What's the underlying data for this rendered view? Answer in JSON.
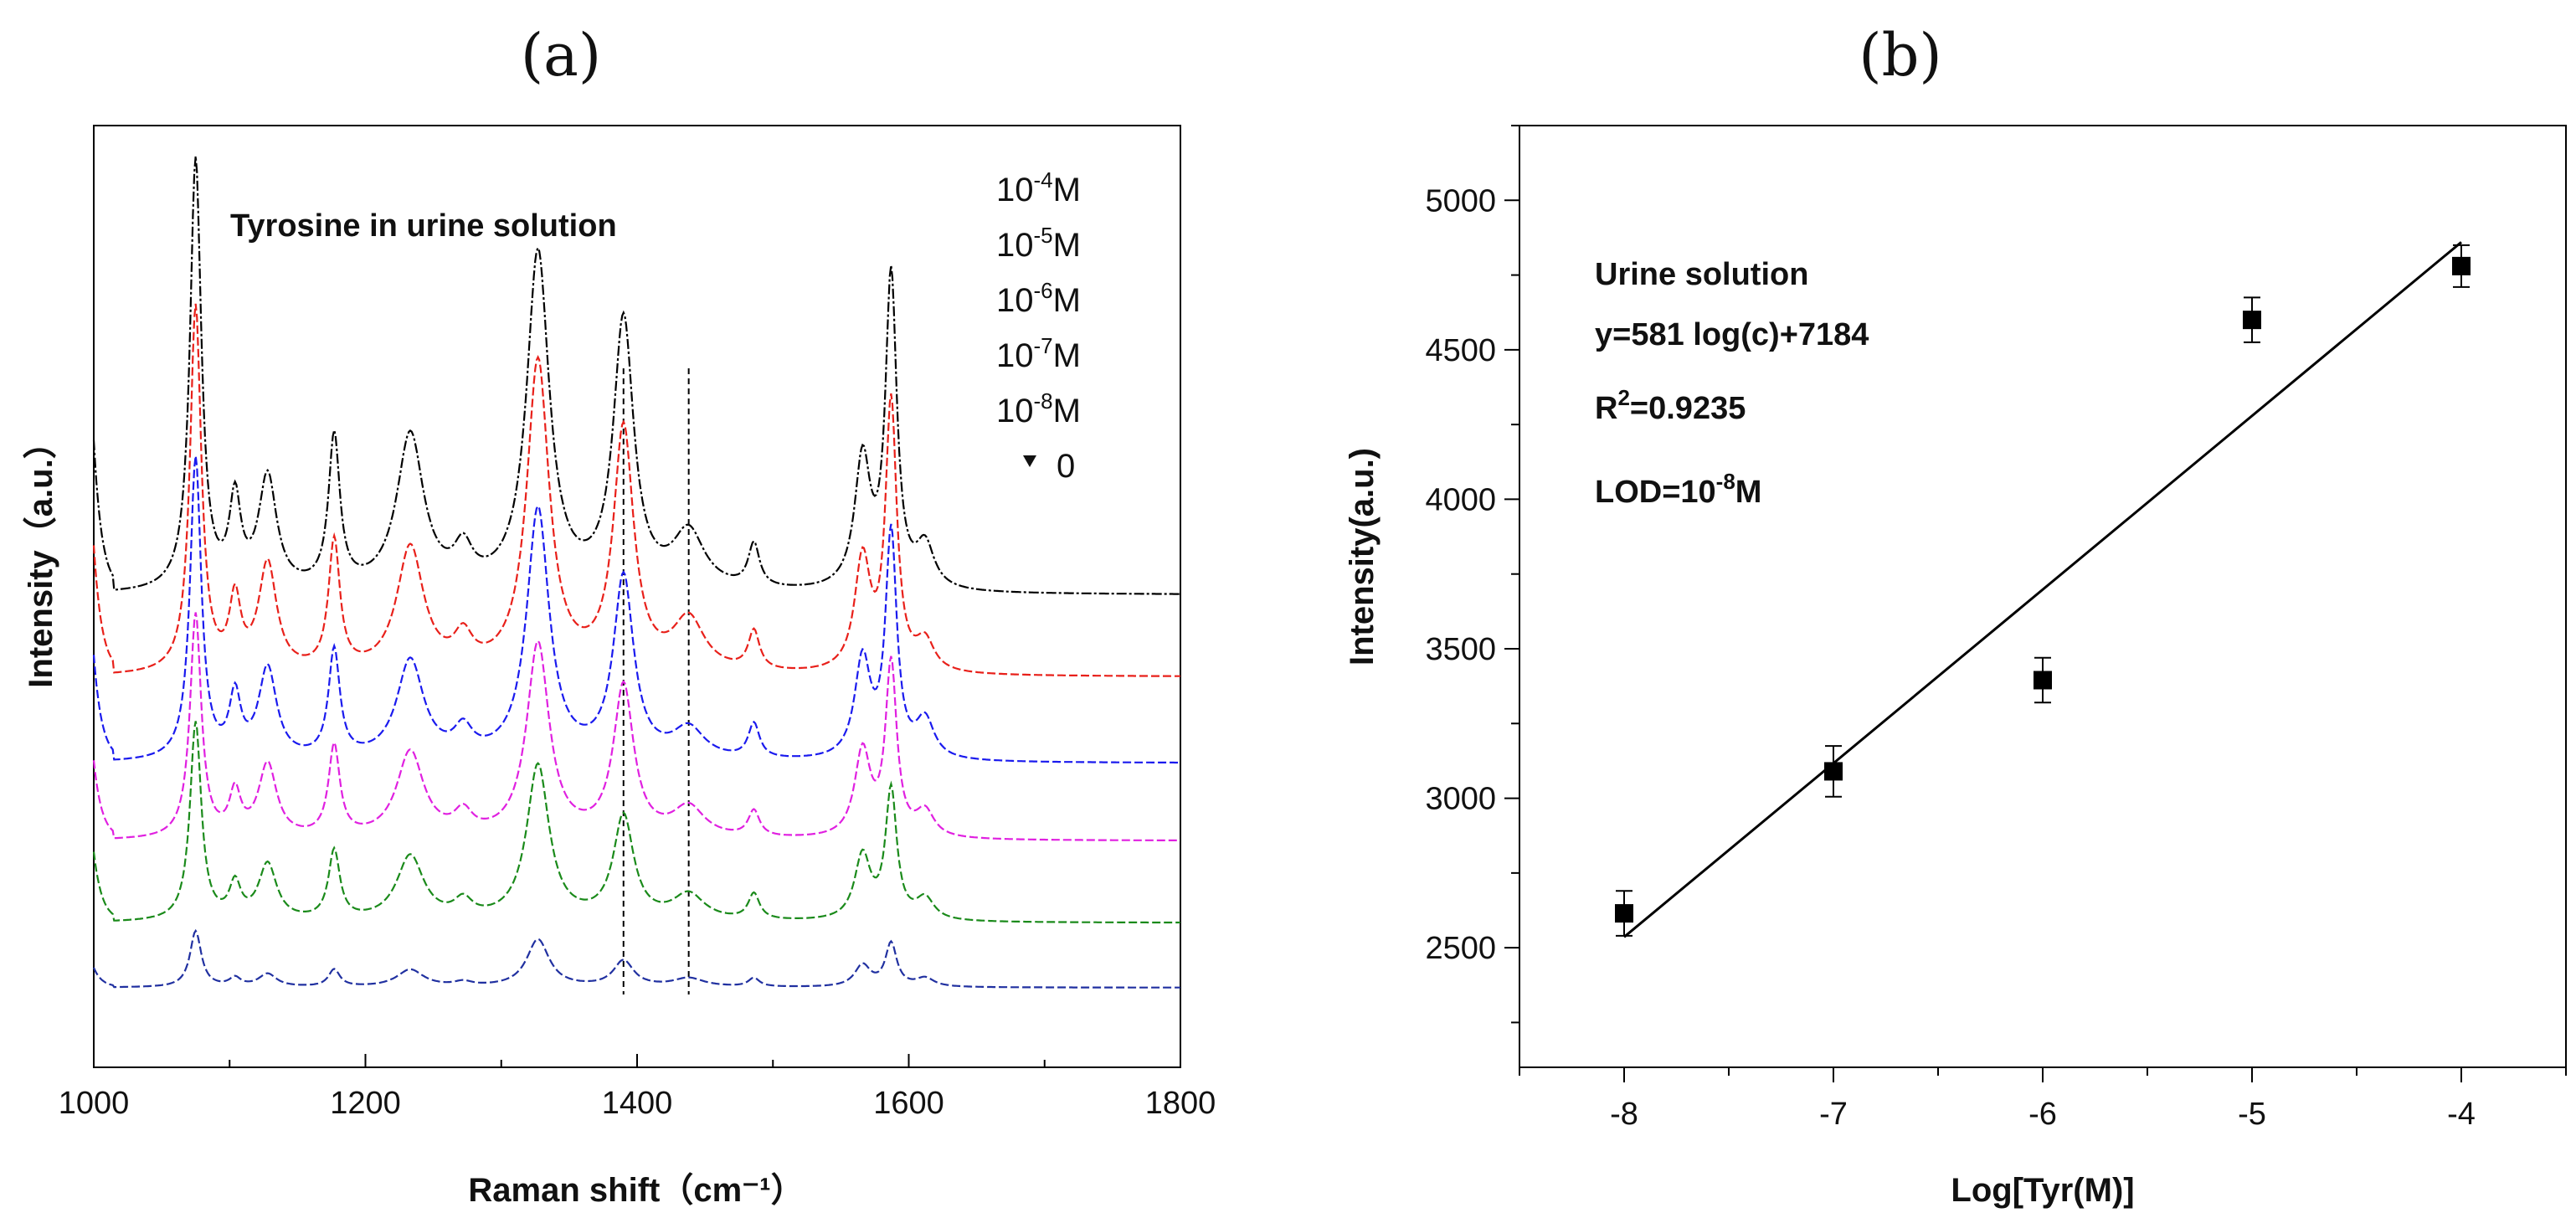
{
  "figure": {
    "label_a": "(a)",
    "label_b": "(b)"
  },
  "chart_data": [
    {
      "type": "line",
      "panel": "a",
      "title": "Tyrosine in urine solution",
      "xlabel": "Raman shift（cm⁻¹）",
      "ylabel": "Intensity（a.u.）",
      "xlim": [
        1000,
        1800
      ],
      "xticks": [
        1000,
        1200,
        1400,
        1600,
        1800
      ],
      "reference_lines_x": [
        1390,
        1438
      ],
      "peaks": [
        {
          "center": 1075,
          "width": 5
        },
        {
          "center": 1104,
          "width": 5
        },
        {
          "center": 1128,
          "width": 8
        },
        {
          "center": 1177,
          "width": 5
        },
        {
          "center": 1233,
          "width": 12
        },
        {
          "center": 1272,
          "width": 8
        },
        {
          "center": 1327,
          "width": 10
        },
        {
          "center": 1390,
          "width": 9
        },
        {
          "center": 1438,
          "width": 14
        },
        {
          "center": 1486,
          "width": 5
        },
        {
          "center": 1566,
          "width": 7
        },
        {
          "center": 1587,
          "width": 5
        },
        {
          "center": 1612,
          "width": 8
        }
      ],
      "series": [
        {
          "name": "10^-4 M",
          "legend": {
            "base": "10",
            "exp": "-4",
            "unit": "M"
          },
          "color": "#000000",
          "baseline": 0.86,
          "amplitudes": [
            1.0,
            0.2,
            0.26,
            0.35,
            0.36,
            0.08,
            0.78,
            0.62,
            0.13,
            0.1,
            0.3,
            0.72,
            0.1
          ]
        },
        {
          "name": "10^-5 M",
          "legend": {
            "base": "10",
            "exp": "-5",
            "unit": "M"
          },
          "color": "#e8201a",
          "baseline": 0.67,
          "amplitudes": [
            0.85,
            0.16,
            0.25,
            0.3,
            0.29,
            0.07,
            0.72,
            0.56,
            0.12,
            0.09,
            0.26,
            0.62,
            0.07
          ]
        },
        {
          "name": "10^-6 M",
          "legend": {
            "base": "10",
            "exp": "-6",
            "unit": "M"
          },
          "color": "#1a1aee",
          "baseline": 0.47,
          "amplitudes": [
            0.7,
            0.14,
            0.21,
            0.25,
            0.23,
            0.06,
            0.58,
            0.42,
            0.07,
            0.08,
            0.23,
            0.52,
            0.09
          ]
        },
        {
          "name": "10^-7 M",
          "legend": {
            "base": "10",
            "exp": "-7",
            "unit": "M"
          },
          "color": "#e020e0",
          "baseline": 0.29,
          "amplitudes": [
            0.52,
            0.1,
            0.17,
            0.21,
            0.2,
            0.05,
            0.45,
            0.35,
            0.07,
            0.06,
            0.2,
            0.4,
            0.06
          ]
        },
        {
          "name": "10^-8 M",
          "legend": {
            "base": "10",
            "exp": "-8",
            "unit": "M"
          },
          "color": "#1a8a1a",
          "baseline": 0.1,
          "amplitudes": [
            0.46,
            0.08,
            0.13,
            0.16,
            0.15,
            0.04,
            0.36,
            0.24,
            0.06,
            0.06,
            0.15,
            0.3,
            0.05
          ]
        },
        {
          "name": "0",
          "legend": {
            "base": "0",
            "exp": "",
            "unit": ""
          },
          "color": "#2030a0",
          "baseline": -0.05,
          "amplitudes": [
            0.13,
            0.02,
            0.03,
            0.04,
            0.04,
            0.01,
            0.11,
            0.06,
            0.02,
            0.02,
            0.05,
            0.1,
            0.02
          ]
        }
      ]
    },
    {
      "type": "scatter",
      "panel": "b",
      "xlabel": "Log[Tyr(M)]",
      "ylabel": "Intensity(a.u.)",
      "xlim": [
        -8.5,
        -3.5
      ],
      "ylim": [
        2100,
        5250
      ],
      "xticks": [
        -8,
        -7,
        -6,
        -5,
        -4
      ],
      "yticks": [
        2500,
        3000,
        3500,
        4000,
        4500,
        5000
      ],
      "x": [
        -8,
        -7,
        -6,
        -5,
        -4
      ],
      "y": [
        2615,
        3090,
        3395,
        4600,
        4780
      ],
      "error": [
        75,
        85,
        75,
        75,
        70
      ],
      "fit": {
        "slope": 581,
        "intercept": 7184,
        "x_range": [
          -8,
          -4
        ]
      },
      "annotations": {
        "title": "Urine solution",
        "equation": "y=581 log(c)+7184",
        "r2_prefix": "R",
        "r2_exp": "2",
        "r2_value": "=0.9235",
        "lod_prefix": "LOD=10",
        "lod_exp": "-8",
        "lod_unit": "M"
      }
    }
  ]
}
